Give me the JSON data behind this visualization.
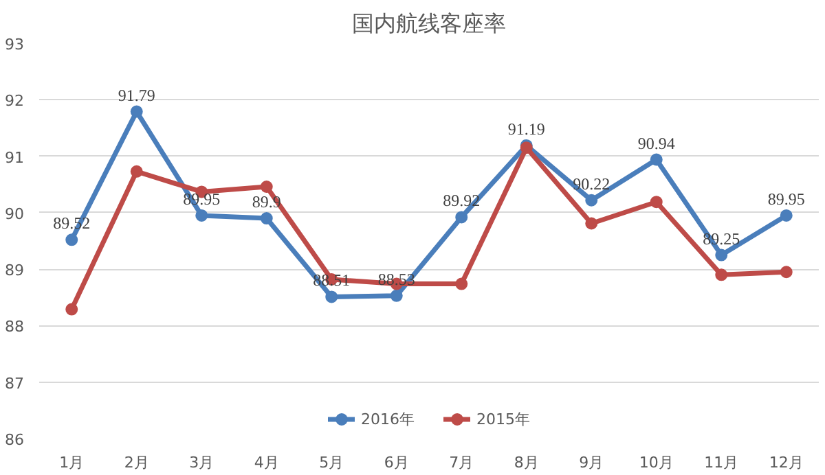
{
  "chart_data": {
    "type": "line",
    "title": "国内航线客座率",
    "categories": [
      "1月",
      "2月",
      "3月",
      "4月",
      "5月",
      "6月",
      "7月",
      "8月",
      "9月",
      "10月",
      "11月",
      "12月"
    ],
    "series": [
      {
        "name": "2016年",
        "color": "#4a7ebb",
        "values": [
          89.52,
          91.79,
          89.95,
          89.9,
          88.51,
          88.53,
          89.92,
          91.19,
          90.22,
          90.94,
          89.25,
          89.95
        ],
        "value_labels": [
          "89.52",
          "91.79",
          "89.95",
          "89.9",
          "88.51",
          "88.53",
          "89.92",
          "91.19",
          "90.22",
          "90.94",
          "89.25",
          "89.95"
        ]
      },
      {
        "name": "2015年",
        "color": "#be4b48",
        "values": [
          88.29,
          90.73,
          90.37,
          90.46,
          88.82,
          88.74,
          88.74,
          91.15,
          89.81,
          90.19,
          88.9,
          88.95
        ]
      }
    ],
    "ylim": [
      86,
      93
    ],
    "yticks": [
      86,
      87,
      88,
      89,
      90,
      91,
      92,
      93
    ],
    "grid": "y",
    "legend": "bottom",
    "marker": "circle",
    "line_style": "solid"
  }
}
